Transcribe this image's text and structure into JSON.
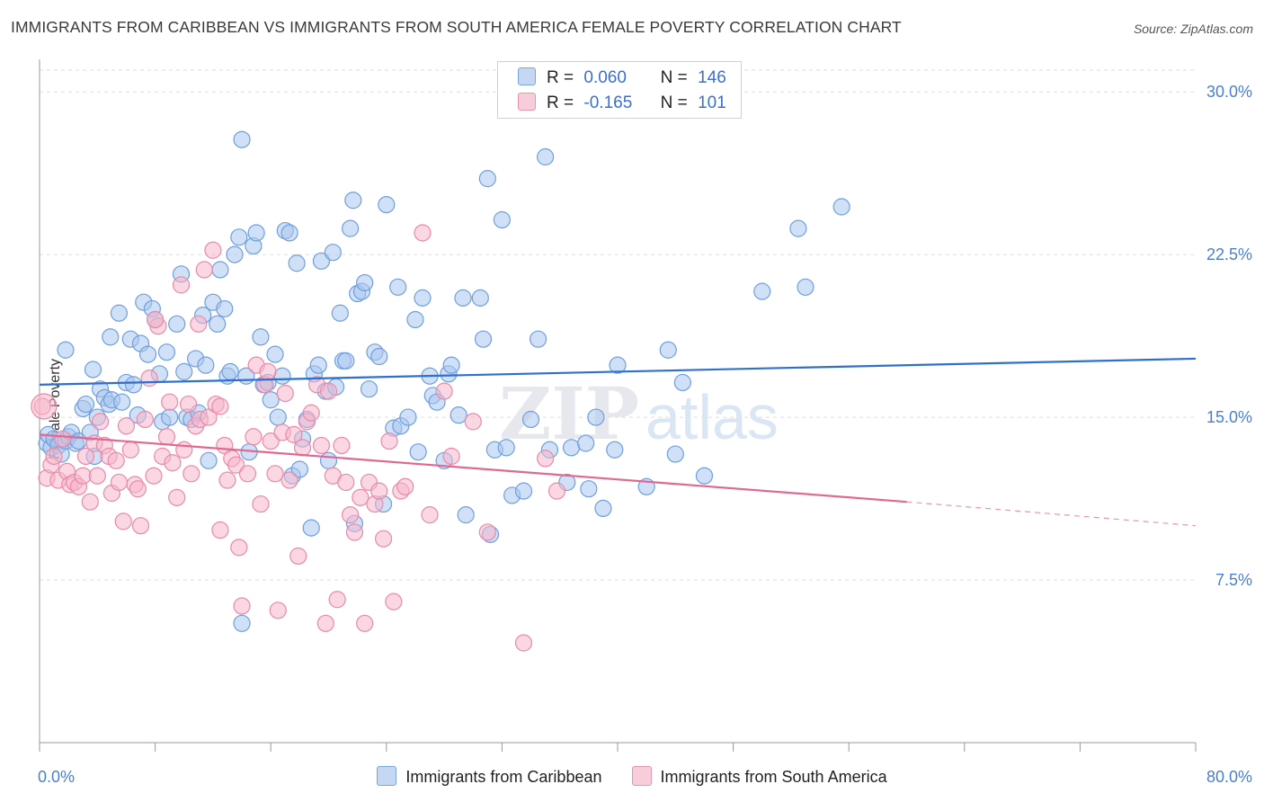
{
  "title": "IMMIGRANTS FROM CARIBBEAN VS IMMIGRANTS FROM SOUTH AMERICA FEMALE POVERTY CORRELATION CHART",
  "source": "Source: ZipAtlas.com",
  "watermark": "ZIPatlas",
  "legend_top": {
    "rows": [
      {
        "r_label": "R =",
        "r_value": "0.060",
        "n_label": "N =",
        "n_value": "146"
      },
      {
        "r_label": "R =",
        "r_value": "-0.165",
        "n_label": "N =",
        "n_value": "101"
      }
    ]
  },
  "colors": {
    "caribbean_fill": "#a9c6ee",
    "caribbean_stroke": "#6f9fe0",
    "caribbean_line": "#2f6fd0",
    "south_america_fill": "#f5b7ca",
    "south_america_stroke": "#e98aa8",
    "south_america_line": "#e06891",
    "axis_text": "#4a7ed4",
    "grid": "#dddddd"
  },
  "chart_data": {
    "type": "scatter",
    "title": "IMMIGRANTS FROM CARIBBEAN VS IMMIGRANTS FROM SOUTH AMERICA FEMALE POVERTY CORRELATION CHART",
    "xlabel": "",
    "ylabel": "Female Poverty",
    "xlim": [
      0,
      80
    ],
    "ylim": [
      0,
      31
    ],
    "x_tick_labels": [
      "0.0%",
      "80.0%"
    ],
    "y_ticks": [
      7.5,
      15.0,
      22.5,
      30.0
    ],
    "y_tick_labels": [
      "7.5%",
      "15.0%",
      "22.5%",
      "30.0%"
    ],
    "grid": true,
    "legend_position": "bottom",
    "series": [
      {
        "name": "Immigrants from Caribbean",
        "trend": {
          "x": [
            0,
            80
          ],
          "y": [
            16.5,
            17.7
          ]
        },
        "points": [
          [
            0.5,
            13.8
          ],
          [
            0.6,
            14.2
          ],
          [
            0.8,
            13.6
          ],
          [
            1.0,
            14.0
          ],
          [
            1.3,
            13.7
          ],
          [
            1.5,
            13.3
          ],
          [
            1.8,
            13.9
          ],
          [
            2.0,
            14.1
          ],
          [
            2.2,
            14.3
          ],
          [
            2.5,
            13.8
          ],
          [
            2.7,
            13.9
          ],
          [
            3.0,
            15.4
          ],
          [
            3.2,
            15.6
          ],
          [
            3.5,
            14.3
          ],
          [
            3.8,
            13.2
          ],
          [
            4.0,
            15.0
          ],
          [
            4.2,
            16.3
          ],
          [
            4.5,
            15.9
          ],
          [
            4.8,
            15.6
          ],
          [
            5.0,
            15.8
          ],
          [
            1.8,
            18.1
          ],
          [
            3.7,
            17.2
          ],
          [
            4.9,
            18.7
          ],
          [
            5.5,
            19.8
          ],
          [
            5.7,
            15.7
          ],
          [
            6.0,
            16.6
          ],
          [
            6.3,
            18.6
          ],
          [
            6.5,
            16.5
          ],
          [
            6.8,
            15.1
          ],
          [
            7.0,
            18.4
          ],
          [
            7.2,
            20.3
          ],
          [
            7.5,
            17.9
          ],
          [
            7.8,
            20.0
          ],
          [
            8.0,
            19.5
          ],
          [
            8.3,
            17.0
          ],
          [
            8.5,
            14.8
          ],
          [
            8.8,
            18.0
          ],
          [
            9.0,
            15.0
          ],
          [
            9.5,
            19.3
          ],
          [
            9.8,
            21.6
          ],
          [
            10.0,
            17.1
          ],
          [
            10.2,
            15.0
          ],
          [
            10.5,
            14.9
          ],
          [
            10.8,
            17.7
          ],
          [
            11.0,
            15.2
          ],
          [
            11.3,
            19.7
          ],
          [
            11.5,
            17.4
          ],
          [
            11.7,
            13.0
          ],
          [
            12.0,
            20.3
          ],
          [
            12.3,
            19.3
          ],
          [
            12.5,
            21.8
          ],
          [
            12.8,
            20.0
          ],
          [
            13.0,
            16.9
          ],
          [
            13.2,
            17.1
          ],
          [
            13.5,
            22.5
          ],
          [
            13.8,
            23.3
          ],
          [
            14.0,
            5.5
          ],
          [
            14.3,
            16.9
          ],
          [
            14.5,
            13.4
          ],
          [
            14.8,
            22.9
          ],
          [
            15.0,
            23.5
          ],
          [
            15.3,
            18.7
          ],
          [
            15.5,
            16.5
          ],
          [
            15.8,
            16.6
          ],
          [
            16.0,
            15.8
          ],
          [
            16.3,
            17.9
          ],
          [
            16.5,
            15.0
          ],
          [
            16.8,
            16.9
          ],
          [
            17.0,
            23.6
          ],
          [
            17.3,
            23.5
          ],
          [
            17.5,
            12.3
          ],
          [
            17.8,
            22.1
          ],
          [
            18.0,
            12.6
          ],
          [
            18.2,
            14.0
          ],
          [
            18.5,
            14.9
          ],
          [
            18.8,
            9.9
          ],
          [
            19.0,
            17.0
          ],
          [
            19.3,
            17.4
          ],
          [
            19.5,
            22.2
          ],
          [
            19.8,
            16.2
          ],
          [
            20.0,
            13.0
          ],
          [
            20.3,
            22.6
          ],
          [
            20.5,
            16.4
          ],
          [
            20.8,
            19.8
          ],
          [
            21.0,
            17.6
          ],
          [
            21.2,
            17.6
          ],
          [
            21.5,
            23.7
          ],
          [
            21.7,
            25.0
          ],
          [
            21.8,
            10.1
          ],
          [
            22.0,
            20.7
          ],
          [
            22.3,
            20.8
          ],
          [
            22.5,
            21.2
          ],
          [
            22.8,
            16.3
          ],
          [
            23.2,
            18.0
          ],
          [
            23.5,
            17.8
          ],
          [
            23.8,
            11.0
          ],
          [
            24.0,
            24.8
          ],
          [
            24.5,
            14.5
          ],
          [
            24.8,
            21.0
          ],
          [
            25.0,
            14.6
          ],
          [
            25.5,
            15.0
          ],
          [
            26.0,
            19.5
          ],
          [
            26.2,
            13.4
          ],
          [
            26.5,
            20.5
          ],
          [
            27.0,
            16.9
          ],
          [
            27.2,
            16.0
          ],
          [
            27.5,
            15.7
          ],
          [
            28.0,
            13.0
          ],
          [
            28.3,
            17.0
          ],
          [
            28.5,
            17.4
          ],
          [
            29.0,
            15.1
          ],
          [
            29.3,
            20.5
          ],
          [
            29.5,
            10.5
          ],
          [
            30.5,
            20.5
          ],
          [
            30.7,
            18.6
          ],
          [
            31.0,
            26.0
          ],
          [
            31.2,
            9.6
          ],
          [
            31.5,
            13.5
          ],
          [
            32.0,
            24.1
          ],
          [
            32.3,
            13.6
          ],
          [
            32.7,
            11.4
          ],
          [
            33.5,
            11.6
          ],
          [
            34.0,
            14.9
          ],
          [
            34.5,
            18.6
          ],
          [
            35.0,
            27.0
          ],
          [
            35.3,
            13.5
          ],
          [
            36.5,
            12.0
          ],
          [
            36.8,
            13.6
          ],
          [
            37.8,
            13.8
          ],
          [
            38.0,
            11.7
          ],
          [
            38.5,
            15.0
          ],
          [
            39.0,
            10.8
          ],
          [
            39.8,
            13.5
          ],
          [
            40.0,
            17.4
          ],
          [
            42.0,
            11.8
          ],
          [
            43.5,
            18.1
          ],
          [
            44.0,
            13.3
          ],
          [
            44.5,
            16.6
          ],
          [
            46.0,
            12.3
          ],
          [
            50.0,
            20.8
          ],
          [
            52.5,
            23.7
          ],
          [
            53.0,
            21.0
          ],
          [
            55.5,
            24.7
          ],
          [
            14.0,
            27.8
          ]
        ]
      },
      {
        "name": "Immigrants from South America",
        "trend": {
          "x": [
            0,
            60
          ],
          "y": [
            14.2,
            11.1
          ]
        },
        "trend_dashed": {
          "x": [
            60,
            80
          ],
          "y": [
            11.1,
            10.0
          ]
        },
        "points": [
          [
            0.2,
            15.5
          ],
          [
            0.5,
            12.2
          ],
          [
            0.8,
            12.8
          ],
          [
            1.0,
            13.2
          ],
          [
            1.3,
            12.1
          ],
          [
            1.6,
            14.0
          ],
          [
            1.9,
            12.5
          ],
          [
            2.1,
            11.9
          ],
          [
            2.4,
            12.0
          ],
          [
            2.7,
            11.8
          ],
          [
            3.0,
            12.3
          ],
          [
            3.2,
            13.2
          ],
          [
            3.5,
            11.1
          ],
          [
            3.8,
            13.8
          ],
          [
            4.0,
            12.3
          ],
          [
            4.2,
            14.8
          ],
          [
            4.5,
            13.7
          ],
          [
            4.8,
            13.2
          ],
          [
            5.0,
            11.5
          ],
          [
            5.3,
            13.0
          ],
          [
            5.5,
            12.0
          ],
          [
            5.8,
            10.2
          ],
          [
            6.0,
            14.6
          ],
          [
            6.3,
            13.5
          ],
          [
            6.6,
            11.9
          ],
          [
            6.8,
            11.7
          ],
          [
            7.0,
            10.0
          ],
          [
            7.3,
            14.9
          ],
          [
            7.6,
            16.8
          ],
          [
            7.9,
            12.3
          ],
          [
            8.2,
            19.2
          ],
          [
            8.5,
            13.2
          ],
          [
            8.8,
            14.1
          ],
          [
            9.0,
            15.7
          ],
          [
            9.2,
            12.9
          ],
          [
            9.5,
            11.3
          ],
          [
            9.8,
            21.1
          ],
          [
            10.0,
            13.5
          ],
          [
            10.3,
            15.6
          ],
          [
            10.5,
            12.4
          ],
          [
            10.8,
            14.6
          ],
          [
            11.1,
            14.9
          ],
          [
            11.4,
            21.8
          ],
          [
            11.7,
            15.0
          ],
          [
            12.0,
            22.7
          ],
          [
            12.2,
            15.6
          ],
          [
            12.5,
            9.8
          ],
          [
            12.8,
            13.7
          ],
          [
            13.0,
            12.1
          ],
          [
            13.3,
            13.1
          ],
          [
            13.6,
            12.8
          ],
          [
            13.8,
            9.0
          ],
          [
            14.0,
            6.3
          ],
          [
            14.4,
            12.4
          ],
          [
            14.8,
            14.1
          ],
          [
            15.0,
            17.4
          ],
          [
            15.3,
            11.0
          ],
          [
            15.6,
            16.5
          ],
          [
            15.8,
            17.1
          ],
          [
            16.0,
            13.9
          ],
          [
            16.3,
            12.4
          ],
          [
            16.5,
            6.1
          ],
          [
            16.8,
            14.3
          ],
          [
            17.0,
            16.1
          ],
          [
            17.3,
            12.1
          ],
          [
            17.6,
            14.2
          ],
          [
            17.9,
            8.6
          ],
          [
            18.2,
            13.6
          ],
          [
            18.5,
            14.8
          ],
          [
            18.8,
            15.2
          ],
          [
            19.2,
            16.5
          ],
          [
            19.5,
            13.7
          ],
          [
            19.8,
            5.5
          ],
          [
            20.0,
            16.2
          ],
          [
            20.3,
            12.3
          ],
          [
            20.6,
            6.6
          ],
          [
            20.9,
            13.7
          ],
          [
            21.2,
            12.0
          ],
          [
            21.5,
            10.5
          ],
          [
            21.8,
            9.7
          ],
          [
            22.2,
            11.3
          ],
          [
            22.5,
            5.5
          ],
          [
            22.8,
            12.0
          ],
          [
            23.2,
            11.0
          ],
          [
            23.5,
            11.6
          ],
          [
            23.8,
            9.4
          ],
          [
            24.2,
            13.9
          ],
          [
            24.5,
            6.5
          ],
          [
            25.0,
            11.6
          ],
          [
            25.3,
            11.8
          ],
          [
            26.5,
            23.5
          ],
          [
            27.0,
            10.5
          ],
          [
            28.0,
            16.2
          ],
          [
            28.5,
            13.2
          ],
          [
            30.0,
            14.8
          ],
          [
            31.0,
            9.7
          ],
          [
            33.5,
            4.6
          ],
          [
            35.0,
            13.1
          ],
          [
            35.8,
            11.6
          ],
          [
            11.0,
            19.3
          ],
          [
            12.5,
            15.5
          ],
          [
            8.0,
            19.5
          ]
        ]
      }
    ]
  },
  "legend_bottom": {
    "items": [
      "Immigrants from Caribbean",
      "Immigrants from South America"
    ]
  },
  "axes": {
    "x_min_label": "0.0%",
    "x_max_label": "80.0%"
  }
}
